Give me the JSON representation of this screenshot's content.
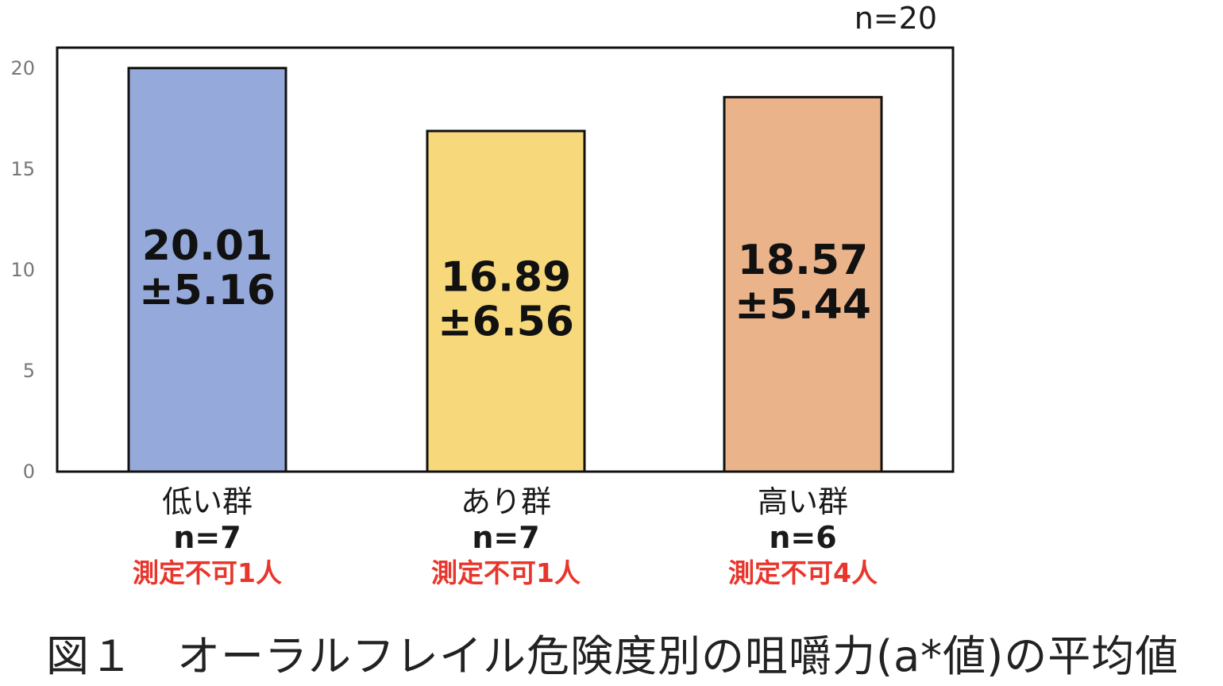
{
  "chart_data": {
    "type": "bar",
    "ylim": [
      0,
      20
    ],
    "yticks": [
      0,
      5,
      10,
      15,
      20
    ],
    "grid": false,
    "total_n_label": "n=20",
    "categories": [
      "低い群",
      "あり群",
      "高い群"
    ],
    "values": [
      20.01,
      16.89,
      18.57
    ],
    "value_labels": [
      [
        "20.01",
        "±5.16"
      ],
      [
        "16.89",
        "±6.56"
      ],
      [
        "18.57",
        "±5.44"
      ]
    ],
    "n_labels": [
      "n=7",
      "n=7",
      "n=6"
    ],
    "notes": [
      "測定不可1人",
      "測定不可1人",
      "測定不可4人"
    ],
    "colors": [
      "#95aadb",
      "#f7d97c",
      "#eab38a"
    ],
    "note_color": "#e8362d"
  },
  "caption": "図１　オーラルフレイル危険度別の咀嚼力(a*値)の平均値"
}
